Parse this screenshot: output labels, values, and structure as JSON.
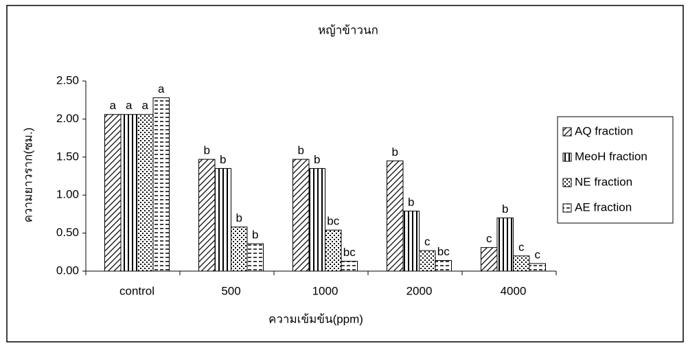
{
  "chart_data": {
    "type": "bar",
    "title": "หญ้าข้าวนก",
    "xlabel": "ความเข้มข้น(ppm)",
    "ylabel": "ความยาวราก(ซม.)",
    "categories": [
      "control",
      "500",
      "1000",
      "2000",
      "4000"
    ],
    "series": [
      {
        "name": "AQ fraction",
        "values": [
          2.06,
          1.47,
          1.47,
          1.45,
          0.31
        ],
        "significance": [
          "a",
          "b",
          "b",
          "b",
          "c"
        ]
      },
      {
        "name": "MeoH fraction",
        "values": [
          2.06,
          1.35,
          1.35,
          0.79,
          0.7
        ],
        "significance": [
          "a",
          "b",
          "b",
          "b",
          "b"
        ]
      },
      {
        "name": "NE fraction",
        "values": [
          2.06,
          0.58,
          0.54,
          0.27,
          0.2
        ],
        "significance": [
          "a",
          "b",
          "bc",
          "c",
          "c"
        ]
      },
      {
        "name": "AE fraction",
        "values": [
          2.28,
          0.36,
          0.13,
          0.14,
          0.1
        ],
        "significance": [
          "a",
          "b",
          "bc",
          "bc",
          "c"
        ]
      }
    ],
    "ylim": [
      0,
      2.5
    ],
    "yticks": [
      {
        "value": 0,
        "label": "0.00"
      },
      {
        "value": 0.5,
        "label": "0.50"
      },
      {
        "value": 1,
        "label": "1.00"
      },
      {
        "value": 1.5,
        "label": "1.50"
      },
      {
        "value": 2,
        "label": "2.00"
      },
      {
        "value": 2.5,
        "label": "2.50"
      }
    ],
    "legend": "right"
  }
}
